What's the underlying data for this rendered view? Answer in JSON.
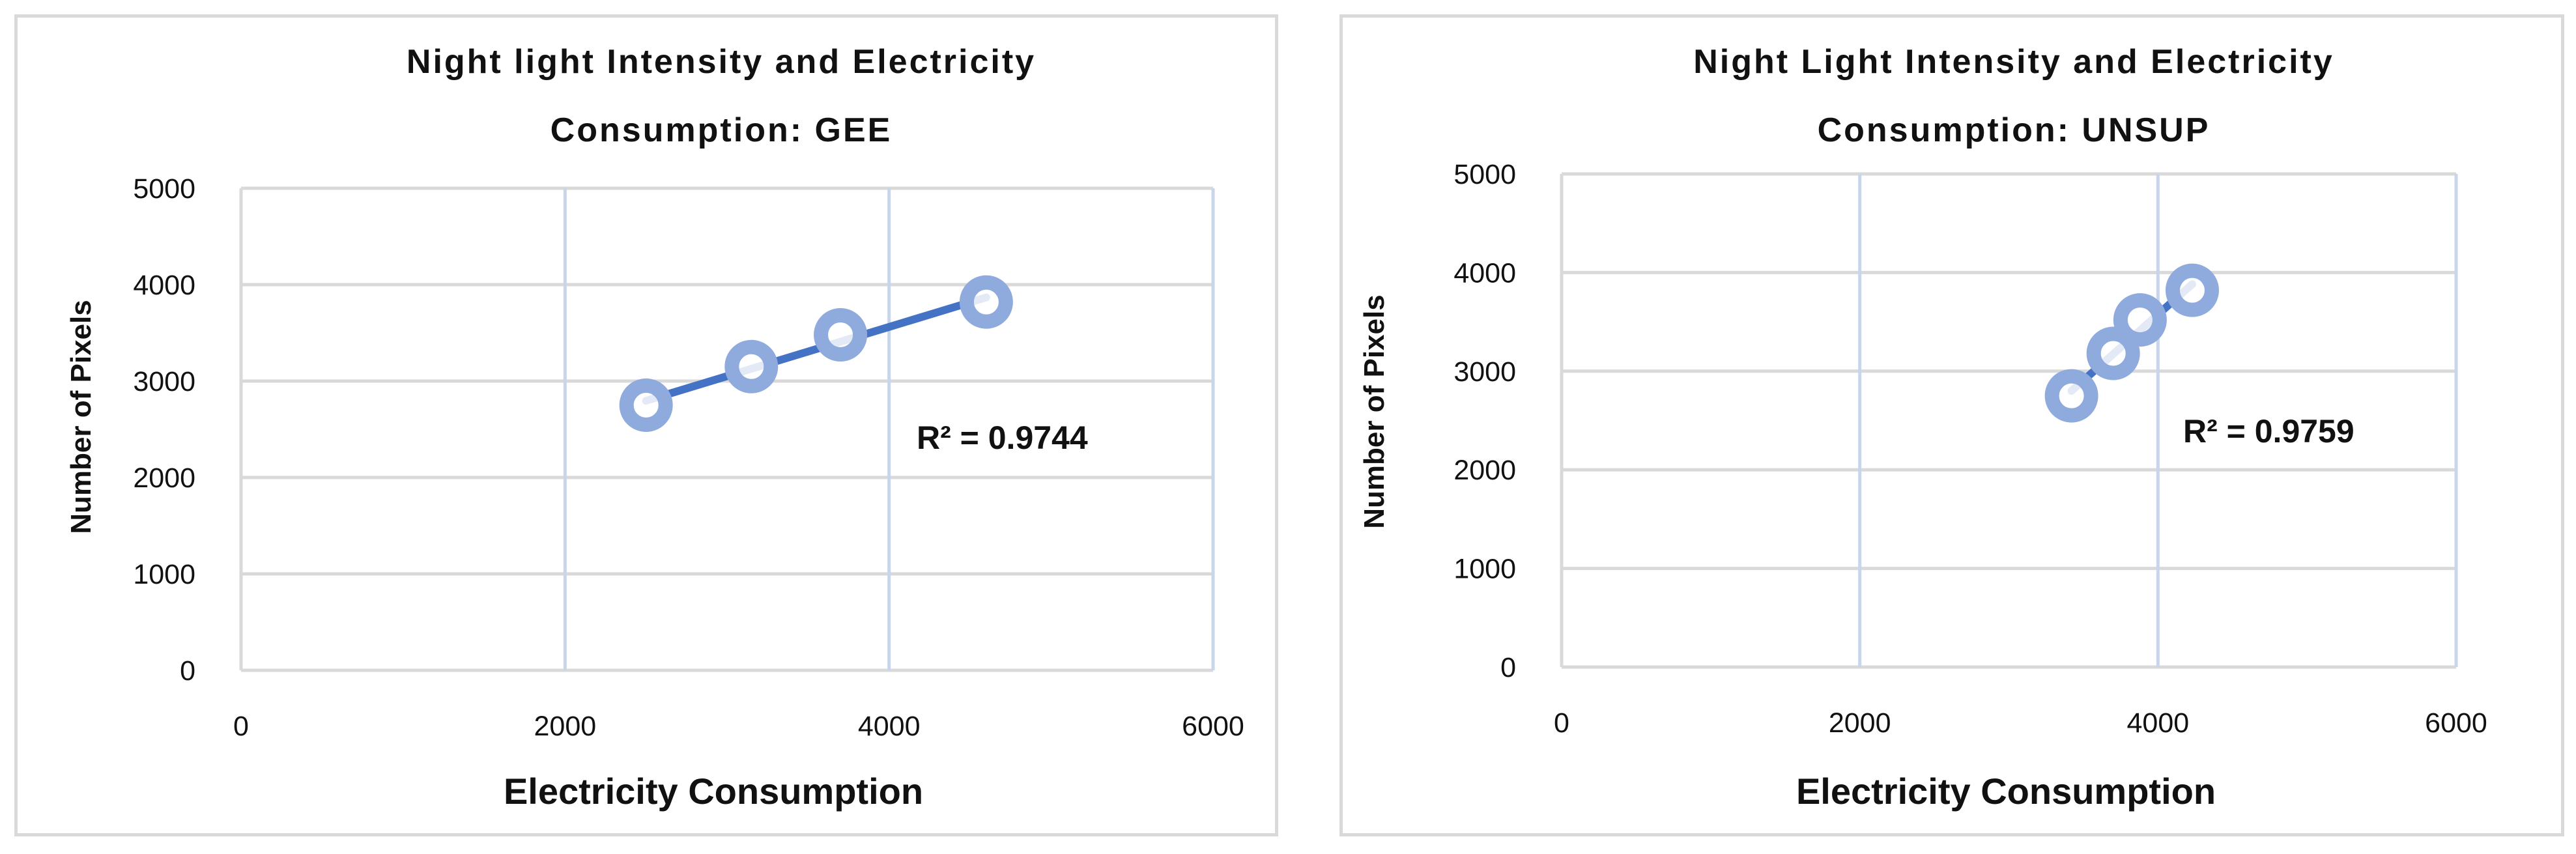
{
  "chart_data": [
    {
      "type": "scatter",
      "title_lines": [
        "Night light Intensity and Electricity",
        "Consumption: GEE"
      ],
      "xlabel": "Electricity Consumption",
      "ylabel": "Number of Pixels",
      "xlim": [
        0,
        6000
      ],
      "ylim": [
        0,
        5000
      ],
      "xticks": [
        "0",
        "2000",
        "4000",
        "6000"
      ],
      "yticks": [
        "0",
        "1000",
        "2000",
        "3000",
        "4000",
        "5000"
      ],
      "grid": true,
      "trendline": "linear",
      "r_squared_label": "R² = 0.9744",
      "points": [
        {
          "x": 2500,
          "y": 2750
        },
        {
          "x": 3150,
          "y": 3150
        },
        {
          "x": 3700,
          "y": 3480
        },
        {
          "x": 4600,
          "y": 3820
        }
      ],
      "colors": {
        "marker": "#8faadc",
        "trendline": "#4472c4"
      }
    },
    {
      "type": "scatter",
      "title_lines": [
        "Night Light Intensity and Electricity",
        "Consumption: UNSUP"
      ],
      "xlabel": "Electricity Consumption",
      "ylabel": "Number of Pixels",
      "xlim": [
        0,
        6000
      ],
      "ylim": [
        0,
        5000
      ],
      "xticks": [
        "0",
        "2000",
        "4000",
        "6000"
      ],
      "yticks": [
        "0",
        "1000",
        "2000",
        "3000",
        "4000",
        "5000"
      ],
      "grid": true,
      "trendline": "linear",
      "r_squared_label": "R² = 0.9759",
      "points": [
        {
          "x": 3420,
          "y": 2750
        },
        {
          "x": 3700,
          "y": 3180
        },
        {
          "x": 3880,
          "y": 3520
        },
        {
          "x": 4230,
          "y": 3820
        }
      ],
      "colors": {
        "marker": "#8faadc",
        "trendline": "#4472c4"
      }
    }
  ]
}
